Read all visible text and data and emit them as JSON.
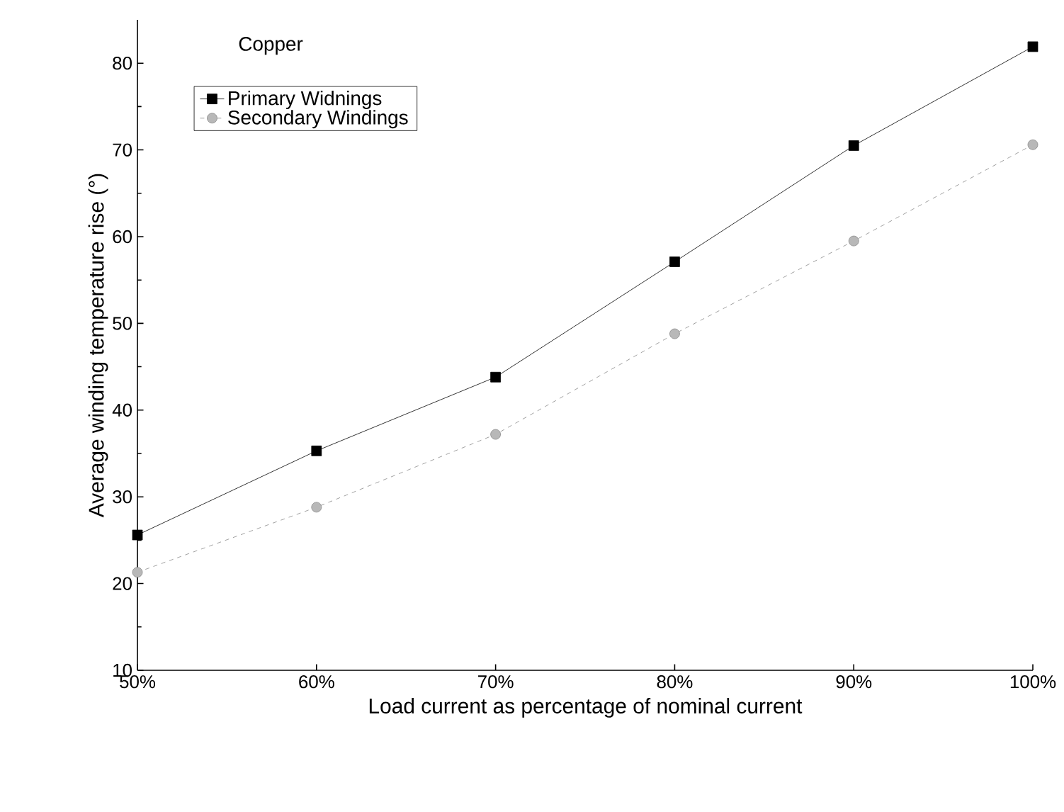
{
  "chart_data": {
    "type": "line",
    "categories": [
      "50%",
      "60%",
      "70%",
      "80%",
      "90%",
      "100%"
    ],
    "xlabel": "Load current as percentage of  nominal current",
    "ylabel": "Average winding temperature rise (°)",
    "annotations": [
      "Copper"
    ],
    "ylim": [
      10,
      85
    ],
    "yticks": [
      10,
      20,
      30,
      40,
      50,
      60,
      70,
      80
    ],
    "legend": "top left",
    "grid": false,
    "series": [
      {
        "name": "Primary Widnings",
        "color": "#000000",
        "marker": "square",
        "line_style": "solid",
        "values": [
          25.6,
          35.3,
          43.8,
          57.1,
          70.5,
          81.9
        ]
      },
      {
        "name": "Secondary Windings",
        "color": "#888888",
        "marker": "circle",
        "line_style": "dashed",
        "values": [
          21.3,
          28.8,
          37.2,
          48.8,
          59.5,
          70.6
        ]
      }
    ]
  }
}
